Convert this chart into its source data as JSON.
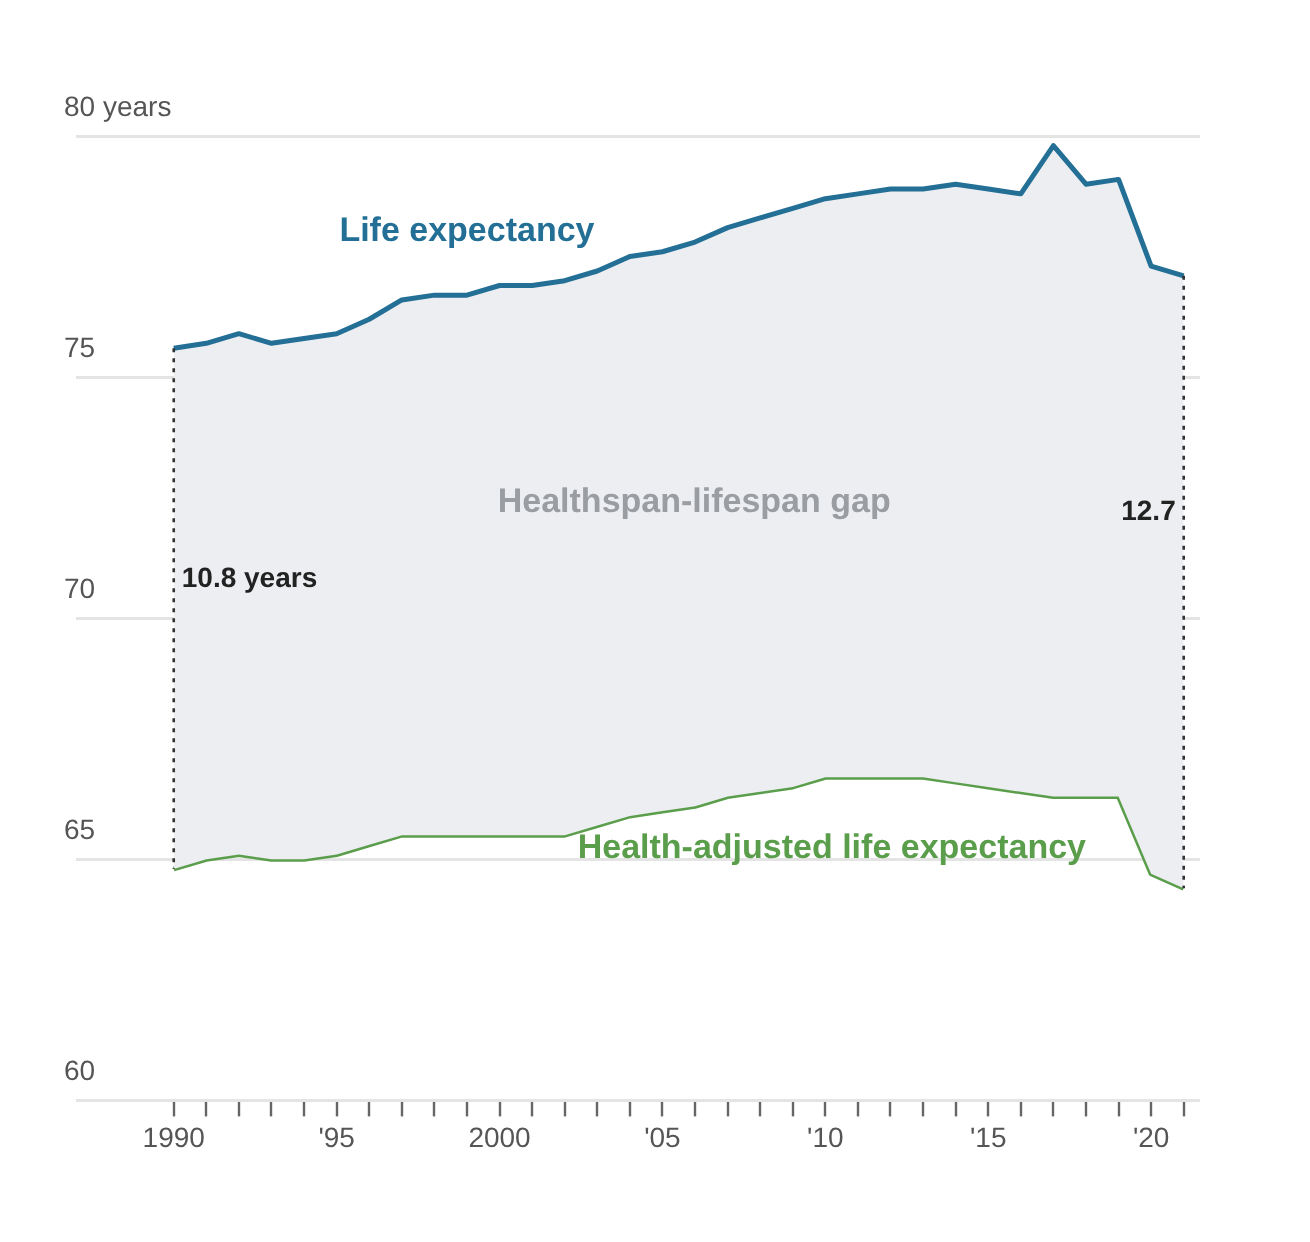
{
  "chart_data": {
    "type": "line",
    "x": [
      1990,
      1991,
      1992,
      1993,
      1994,
      1995,
      1996,
      1997,
      1998,
      1999,
      2000,
      2001,
      2002,
      2003,
      2004,
      2005,
      2006,
      2007,
      2008,
      2009,
      2010,
      2011,
      2012,
      2013,
      2014,
      2015,
      2016,
      2017,
      2018,
      2019,
      2020,
      2021
    ],
    "series": [
      {
        "name": "Life expectancy",
        "type": "area",
        "color": "#236f96",
        "values": [
          75.6,
          75.7,
          75.9,
          75.7,
          75.8,
          75.9,
          76.2,
          76.6,
          76.7,
          76.7,
          76.9,
          76.9,
          77.0,
          77.2,
          77.5,
          77.6,
          77.8,
          78.1,
          78.3,
          78.5,
          78.7,
          78.8,
          78.9,
          78.9,
          79.0,
          78.9,
          78.8,
          79.8,
          79.0,
          79.1,
          77.3,
          77.1
        ]
      },
      {
        "name": "Health-adjusted life expectancy",
        "color": "#5a9e4b",
        "values": [
          64.8,
          65.0,
          65.1,
          65.0,
          65.0,
          65.1,
          65.3,
          65.5,
          65.5,
          65.5,
          65.5,
          65.5,
          65.5,
          65.7,
          65.9,
          66.0,
          66.1,
          66.3,
          66.4,
          66.5,
          66.7,
          66.7,
          66.7,
          66.7,
          66.6,
          66.5,
          66.4,
          66.3,
          66.3,
          66.3,
          64.7,
          64.4
        ]
      }
    ],
    "xlim": [
      1987,
      2021.5
    ],
    "xticks": [
      {
        "value": 1990,
        "label": "1990"
      },
      {
        "value": 1991,
        "label": null
      },
      {
        "value": 1992,
        "label": null
      },
      {
        "value": 1993,
        "label": null
      },
      {
        "value": 1994,
        "label": null
      },
      {
        "value": 1995,
        "label": "'95"
      },
      {
        "value": 1996,
        "label": null
      },
      {
        "value": 1997,
        "label": null
      },
      {
        "value": 1998,
        "label": null
      },
      {
        "value": 1999,
        "label": null
      },
      {
        "value": 2000,
        "label": "2000"
      },
      {
        "value": 2001,
        "label": null
      },
      {
        "value": 2002,
        "label": null
      },
      {
        "value": 2003,
        "label": null
      },
      {
        "value": 2004,
        "label": null
      },
      {
        "value": 2005,
        "label": "'05"
      },
      {
        "value": 2006,
        "label": null
      },
      {
        "value": 2007,
        "label": null
      },
      {
        "value": 2008,
        "label": null
      },
      {
        "value": 2009,
        "label": null
      },
      {
        "value": 2010,
        "label": "'10"
      },
      {
        "value": 2011,
        "label": null
      },
      {
        "value": 2012,
        "label": null
      },
      {
        "value": 2013,
        "label": null
      },
      {
        "value": 2014,
        "label": null
      },
      {
        "value": 2015,
        "label": "'15"
      },
      {
        "value": 2016,
        "label": null
      },
      {
        "value": 2017,
        "label": null
      },
      {
        "value": 2018,
        "label": null
      },
      {
        "value": 2019,
        "label": null
      },
      {
        "value": 2020,
        "label": "'20"
      },
      {
        "value": 2021,
        "label": null
      }
    ],
    "ylim": [
      60,
      80
    ],
    "yticks": [
      60,
      65,
      70,
      75,
      {
        "value": 80,
        "label": "80 years"
      }
    ],
    "grid": "y",
    "legend": false,
    "marker": "none",
    "line_style": "solid",
    "ref_lines": [
      {
        "axis": "x",
        "value": 1990,
        "line_style": "dotted",
        "color": "#333333"
      },
      {
        "axis": "x",
        "value": 2021,
        "line_style": "dotted",
        "color": "#333333"
      }
    ],
    "annotations": [
      "Healthspan-lifespan gap",
      "10.8 years",
      "12.7"
    ]
  }
}
